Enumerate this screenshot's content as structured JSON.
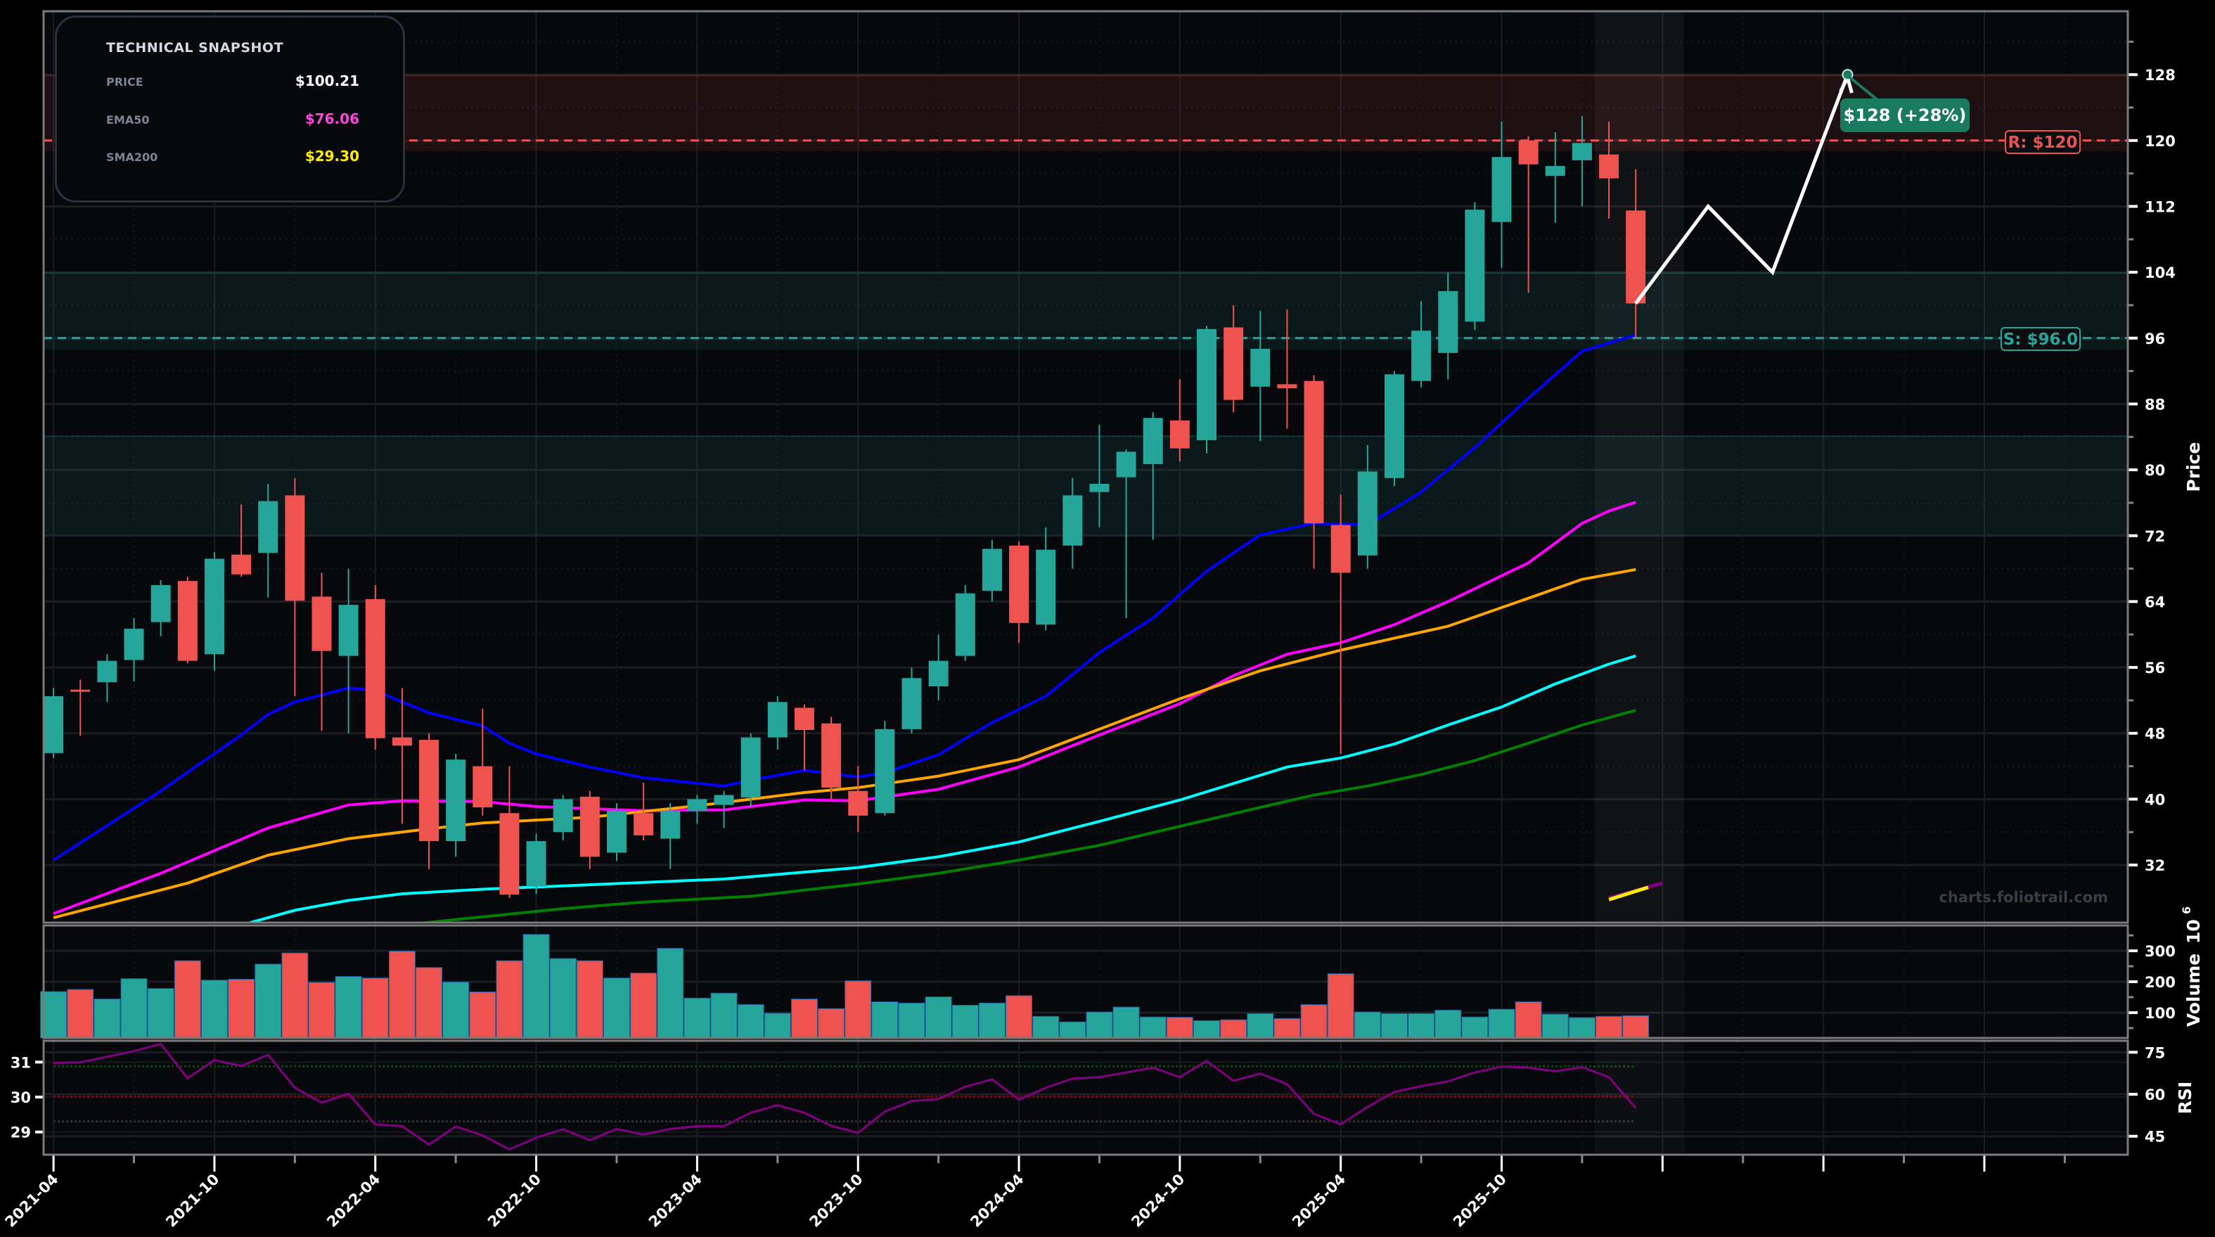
{
  "snapshot": {
    "title": "TECHNICAL SNAPSHOT",
    "rows": [
      {
        "label": "PRICE",
        "value": "$100.21",
        "color": "#ffffff"
      },
      {
        "label": "EMA50",
        "value": "$76.06",
        "color": "#ff44dd"
      },
      {
        "label": "SMA200",
        "value": "$29.30",
        "color": "#ffee00"
      }
    ]
  },
  "annotations": {
    "resistance_label": "R: $120",
    "support_label": "S: $96.0",
    "target_label": "$128 (+28%)",
    "watermark": "charts.foliotrail.com"
  },
  "chart_data": {
    "type": "candlestick",
    "colors": {
      "up": "#26a69a",
      "down": "#ef5350",
      "background": "#07080c",
      "resistance": "#ef5350",
      "support": "#26a69a",
      "target": "#1a7a5e",
      "rsi": "#800080"
    },
    "dates": [
      "2021-04",
      "2021-05",
      "2021-06",
      "2021-07",
      "2021-08",
      "2021-09",
      "2021-10",
      "2021-11",
      "2021-12",
      "2022-01",
      "2022-02",
      "2022-03",
      "2022-04",
      "2022-05",
      "2022-06",
      "2022-07",
      "2022-08",
      "2022-09",
      "2022-10",
      "2022-11",
      "2022-12",
      "2023-01",
      "2023-02",
      "2023-03",
      "2023-04",
      "2023-05",
      "2023-06",
      "2023-07",
      "2023-08",
      "2023-09",
      "2023-10",
      "2023-11",
      "2023-12",
      "2024-01",
      "2024-02",
      "2024-03",
      "2024-04",
      "2024-05",
      "2024-06",
      "2024-07",
      "2024-08",
      "2024-09",
      "2024-10",
      "2024-11",
      "2024-12",
      "2025-01",
      "2025-02",
      "2025-03",
      "2025-04",
      "2025-05",
      "2025-06",
      "2025-07",
      "2025-08",
      "2025-09",
      "2025-10",
      "2025-11",
      "2025-12",
      "2026-01",
      "2026-02",
      "2026-03"
    ],
    "open": [
      45.6,
      53.3,
      54.2,
      56.9,
      61.5,
      66.5,
      57.6,
      69.7,
      69.9,
      76.9,
      64.6,
      57.4,
      64.3,
      47.5,
      47.2,
      34.9,
      44.0,
      38.3,
      29.4,
      36.0,
      40.3,
      33.5,
      38.3,
      35.2,
      38.6,
      39.3,
      40.2,
      47.5,
      51.1,
      49.2,
      41.0,
      38.3,
      48.5,
      53.7,
      57.4,
      65.3,
      70.8,
      61.2,
      70.8,
      77.3,
      79.1,
      80.7,
      86.0,
      83.6,
      97.3,
      90.1,
      90.4,
      90.8,
      73.3,
      69.6,
      79.0,
      90.8,
      94.2,
      98.0,
      110.1,
      120.0,
      115.7,
      117.6,
      118.3,
      111.5
    ],
    "high": [
      53.5,
      54.5,
      57.6,
      62.0,
      66.6,
      67.0,
      70.0,
      75.8,
      78.3,
      79.0,
      67.5,
      68.0,
      66.0,
      53.5,
      48.0,
      45.5,
      51.0,
      44.0,
      35.8,
      40.5,
      41.0,
      39.5,
      42.0,
      39.5,
      40.5,
      41.0,
      48.0,
      52.5,
      51.5,
      50.0,
      44.0,
      49.5,
      56.0,
      60.0,
      66.0,
      71.5,
      71.3,
      73.0,
      79.0,
      85.5,
      82.5,
      87.0,
      91.0,
      97.5,
      100.0,
      99.3,
      99.5,
      91.5,
      77.0,
      83.0,
      92.0,
      100.5,
      104.0,
      112.5,
      122.3,
      120.5,
      121.0,
      123.0,
      122.3,
      116.5
    ],
    "low": [
      45.0,
      47.7,
      51.8,
      54.3,
      59.8,
      56.5,
      55.6,
      67.0,
      64.5,
      52.5,
      48.3,
      48.0,
      46.0,
      37.0,
      31.5,
      33.0,
      38.0,
      28.0,
      28.5,
      35.0,
      31.5,
      32.5,
      35.0,
      31.5,
      37.0,
      36.5,
      39.0,
      46.0,
      43.5,
      40.0,
      36.0,
      38.0,
      48.0,
      52.0,
      56.8,
      64.0,
      59.0,
      60.5,
      68.0,
      73.0,
      62.0,
      71.5,
      81.0,
      82.0,
      87.0,
      83.5,
      85.0,
      68.0,
      45.5,
      68.0,
      78.0,
      90.0,
      91.0,
      97.0,
      104.5,
      101.5,
      110.0,
      112.0,
      110.5,
      96.0
    ],
    "close": [
      52.5,
      53.1,
      56.8,
      60.7,
      66.0,
      56.8,
      69.2,
      67.3,
      76.2,
      64.1,
      58.0,
      63.6,
      47.4,
      46.5,
      34.9,
      44.8,
      39.0,
      28.4,
      34.9,
      40.0,
      33.0,
      38.6,
      35.6,
      38.6,
      40.0,
      40.5,
      47.5,
      51.8,
      48.4,
      41.4,
      38.0,
      48.5,
      54.7,
      56.8,
      65.0,
      70.4,
      61.4,
      70.3,
      76.9,
      78.3,
      82.2,
      86.3,
      82.6,
      97.1,
      88.5,
      94.7,
      89.9,
      73.5,
      67.5,
      79.8,
      91.6,
      96.9,
      101.7,
      111.6,
      118.0,
      117.1,
      116.9,
      119.7,
      115.4,
      100.21
    ],
    "volume": [
      168,
      175,
      144,
      210,
      178,
      268,
      205,
      208,
      257,
      293,
      198,
      217,
      212,
      299,
      246,
      199,
      167,
      268,
      353,
      275,
      268,
      212,
      228,
      308,
      147,
      163,
      126,
      98,
      144,
      113,
      203,
      135,
      131,
      151,
      124,
      131,
      155,
      88,
      70,
      102,
      118,
      86,
      85,
      74,
      77,
      97,
      81,
      126,
      226,
      102,
      97,
      97,
      108,
      86,
      111,
      135,
      95,
      84,
      88,
      90
    ],
    "rsi": [
      71.2,
      71.4,
      73.4,
      75.4,
      78.0,
      65.7,
      72.2,
      70.1,
      74.1,
      62.3,
      57.0,
      60.2,
      49.2,
      48.6,
      42.0,
      48.5,
      45.3,
      40.3,
      44.5,
      47.5,
      43.6,
      47.6,
      45.6,
      47.6,
      48.6,
      48.6,
      53.4,
      56.1,
      53.4,
      48.7,
      46.2,
      53.8,
      57.6,
      58.3,
      62.7,
      65.3,
      58.1,
      62.3,
      65.6,
      66.1,
      67.8,
      69.5,
      66.1,
      71.9,
      64.8,
      67.4,
      63.6,
      53.0,
      49.3,
      55.5,
      60.8,
      62.9,
      64.6,
      67.8,
      69.9,
      69.5,
      68.2,
      69.7,
      66.1,
      55.1
    ],
    "lines": [
      {
        "color": "#0000ff",
        "points": [
          [
            "2021-04",
            32.6
          ],
          [
            "2021-06",
            36.8
          ],
          [
            "2021-08",
            41.0
          ],
          [
            "2021-11",
            47.8
          ],
          [
            "2021-12",
            50.3
          ],
          [
            "2022-01",
            51.8
          ],
          [
            "2022-03",
            53.5
          ],
          [
            "2022-04",
            53.2
          ],
          [
            "2022-05",
            51.8
          ],
          [
            "2022-06",
            50.5
          ],
          [
            "2022-08",
            48.9
          ],
          [
            "2022-09",
            46.8
          ],
          [
            "2022-10",
            45.5
          ],
          [
            "2022-12",
            43.9
          ],
          [
            "2023-02",
            42.6
          ],
          [
            "2023-05",
            41.6
          ],
          [
            "2023-06",
            42.3
          ],
          [
            "2023-08",
            43.5
          ],
          [
            "2023-10",
            42.7
          ],
          [
            "2023-11",
            43.2
          ],
          [
            "2024-01",
            45.4
          ],
          [
            "2024-03",
            49.3
          ],
          [
            "2024-05",
            52.5
          ],
          [
            "2024-07",
            57.8
          ],
          [
            "2024-09",
            62.0
          ],
          [
            "2024-11",
            67.7
          ],
          [
            "2025-01",
            72.1
          ],
          [
            "2025-03",
            73.5
          ],
          [
            "2025-05",
            73.3
          ],
          [
            "2025-07",
            77.3
          ],
          [
            "2025-09",
            82.7
          ],
          [
            "2025-11",
            88.7
          ],
          [
            "2026-01",
            94.4
          ],
          [
            "2026-03",
            96.4
          ]
        ]
      },
      {
        "color": "#ff00ff",
        "points": [
          [
            "2021-04",
            26.1
          ],
          [
            "2021-08",
            31.0
          ],
          [
            "2021-12",
            36.5
          ],
          [
            "2022-03",
            39.3
          ],
          [
            "2022-05",
            39.8
          ],
          [
            "2022-08",
            39.7
          ],
          [
            "2022-10",
            39.1
          ],
          [
            "2023-02",
            38.6
          ],
          [
            "2023-05",
            38.7
          ],
          [
            "2023-08",
            39.9
          ],
          [
            "2023-10",
            39.8
          ],
          [
            "2024-01",
            41.2
          ],
          [
            "2024-04",
            43.9
          ],
          [
            "2024-07",
            47.8
          ],
          [
            "2024-10",
            51.6
          ],
          [
            "2024-12",
            55.0
          ],
          [
            "2025-02",
            57.6
          ],
          [
            "2025-04",
            59.0
          ],
          [
            "2025-06",
            61.2
          ],
          [
            "2025-08",
            64.0
          ],
          [
            "2025-11",
            68.7
          ],
          [
            "2026-01",
            73.5
          ],
          [
            "2026-02",
            75.0
          ],
          [
            "2026-03",
            76.06
          ]
        ]
      },
      {
        "color": "#ffa500",
        "points": [
          [
            "2021-04",
            25.6
          ],
          [
            "2021-09",
            29.8
          ],
          [
            "2021-12",
            33.2
          ],
          [
            "2022-03",
            35.2
          ],
          [
            "2022-06",
            36.4
          ],
          [
            "2022-08",
            37.1
          ],
          [
            "2022-12",
            37.8
          ],
          [
            "2023-04",
            39.2
          ],
          [
            "2023-08",
            40.8
          ],
          [
            "2023-10",
            41.4
          ],
          [
            "2024-01",
            42.8
          ],
          [
            "2024-04",
            44.8
          ],
          [
            "2024-07",
            48.5
          ],
          [
            "2024-10",
            52.2
          ],
          [
            "2025-01",
            55.6
          ],
          [
            "2025-04",
            58.1
          ],
          [
            "2025-08",
            61.0
          ],
          [
            "2025-11",
            64.4
          ],
          [
            "2026-01",
            66.7
          ],
          [
            "2026-03",
            67.9
          ]
        ]
      },
      {
        "color": "#00ffff",
        "points": [
          [
            "2021-11",
            24.7
          ],
          [
            "2022-01",
            26.5
          ],
          [
            "2022-03",
            27.7
          ],
          [
            "2022-05",
            28.5
          ],
          [
            "2022-08",
            29.06
          ],
          [
            "2022-12",
            29.6
          ],
          [
            "2023-05",
            30.3
          ],
          [
            "2023-10",
            31.7
          ],
          [
            "2024-01",
            33.0
          ],
          [
            "2024-04",
            34.8
          ],
          [
            "2024-07",
            37.3
          ],
          [
            "2024-10",
            39.9
          ],
          [
            "2025-02",
            43.9
          ],
          [
            "2025-04",
            45.0
          ],
          [
            "2025-06",
            46.7
          ],
          [
            "2025-08",
            49.0
          ],
          [
            "2025-10",
            51.2
          ],
          [
            "2025-12",
            54.0
          ],
          [
            "2026-02",
            56.4
          ],
          [
            "2026-03",
            57.4
          ]
        ]
      },
      {
        "color": "#008000",
        "points": [
          [
            "2022-05",
            24.7
          ],
          [
            "2022-08",
            25.7
          ],
          [
            "2022-11",
            26.7
          ],
          [
            "2023-02",
            27.5
          ],
          [
            "2023-06",
            28.2
          ],
          [
            "2023-10",
            29.7
          ],
          [
            "2024-01",
            31.0
          ],
          [
            "2024-04",
            32.6
          ],
          [
            "2024-07",
            34.4
          ],
          [
            "2024-10",
            36.7
          ],
          [
            "2025-01",
            39.0
          ],
          [
            "2025-03",
            40.5
          ],
          [
            "2025-05",
            41.6
          ],
          [
            "2025-07",
            43.0
          ],
          [
            "2025-09",
            44.7
          ],
          [
            "2025-11",
            46.8
          ],
          [
            "2026-01",
            49.0
          ],
          [
            "2026-03",
            50.8
          ]
        ]
      },
      {
        "color": "#800080",
        "points": [
          [
            "2026-02",
            28.0
          ],
          [
            "2026-04",
            29.8
          ]
        ]
      },
      {
        "color": "#ffee00",
        "points": [
          [
            "2026-02",
            27.8
          ],
          [
            "2026-03-15",
            29.3
          ]
        ]
      }
    ],
    "projection": [
      [
        "2026-03",
        100.21
      ],
      [
        "2026-05-22",
        112
      ],
      [
        "2026-08-04",
        104
      ],
      [
        "2026-10-28",
        128
      ]
    ],
    "target": {
      "date": "2026-10-28",
      "price": 128
    },
    "resistance": 120,
    "support": 96,
    "zones": [
      {
        "kind": "resistance",
        "from": 118.7,
        "to": 127.9,
        "color": "#ef5350"
      },
      {
        "kind": "support",
        "from": 94.6,
        "to": 103.9,
        "color": "#26a69a"
      },
      {
        "kind": "support",
        "from": 72.0,
        "to": 84.1,
        "color": "#26a69a"
      }
    ],
    "highlight_range": [
      "2026-01-15",
      "2026-04-25"
    ],
    "price_axis": {
      "label": "Price",
      "range": [
        25.0,
        135.7
      ],
      "ticks": [
        "32",
        "40",
        "48",
        "56",
        "64",
        "72",
        "80",
        "88",
        "96",
        "104",
        "112",
        "120",
        "128"
      ]
    },
    "volume_axis": {
      "label": "Volume",
      "multiplier": "10",
      "multiplier_exp": "6",
      "range": [
        18,
        382
      ],
      "ticks": [
        "100",
        "200",
        "300"
      ]
    },
    "rsi_axis": {
      "label": "RSI",
      "range": [
        38.4,
        79.1
      ],
      "ticks": [
        "45",
        "60",
        "75"
      ],
      "reference_lines": [
        {
          "value": 70,
          "color": "#0a4a0a"
        },
        {
          "value": 59.2,
          "color": "#6a1010"
        },
        {
          "value": 50.3,
          "color": "#333333"
        }
      ]
    },
    "rsi_left_axis": {
      "range": [
        28.35,
        31.61
      ],
      "ticks": [
        "29",
        "30",
        "31"
      ]
    },
    "x_axis": {
      "range": [
        -0.37,
        77.35
      ],
      "tick_labels": [
        "2021-04",
        "2021-10",
        "2022-04",
        "2022-10",
        "2023-04",
        "2023-10",
        "2024-04",
        "2024-10",
        "2025-04",
        "2025-10"
      ],
      "unlabeled_major_ticks": [
        "2026-04",
        "2026-10",
        "2027-04"
      ]
    },
    "grid": true
  }
}
